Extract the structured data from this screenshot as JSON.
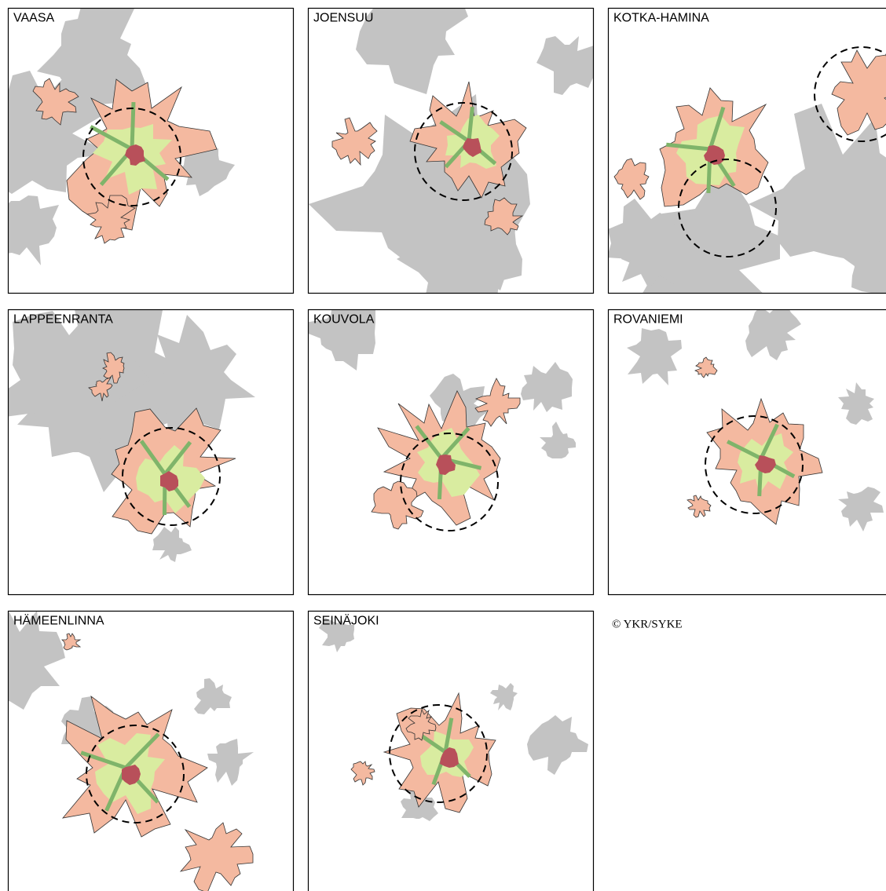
{
  "panels": [
    {
      "label": "VAASA"
    },
    {
      "label": "JOENSUU"
    },
    {
      "label": "KOTKA-HAMINA"
    },
    {
      "label": "LAPPEENRANTA"
    },
    {
      "label": "KOUVOLA"
    },
    {
      "label": "ROVANIEMI"
    },
    {
      "label": "HÄMEENLINNA"
    },
    {
      "label": "SEINÄJOKI"
    }
  ],
  "copyright": "© YKR/SYKE"
}
